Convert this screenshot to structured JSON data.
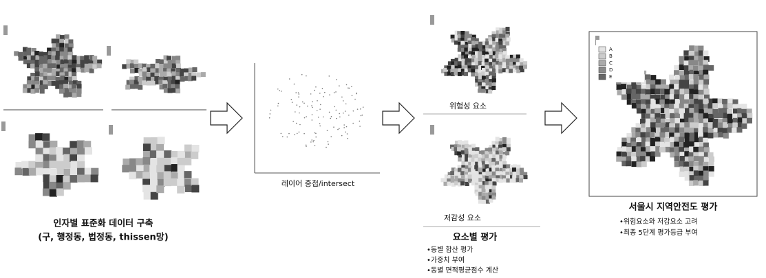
{
  "stage1": {
    "title": "인자별 표준화 데이터 구축",
    "subtitle": "(구, 행정동, 법정동, thissen망)"
  },
  "stage2": {
    "label": "레이어 중첩/intersect"
  },
  "stage3": {
    "risk_label": "위험성 요소",
    "mitigation_label": "저감성 요소",
    "title": "요소별 평가",
    "bullets": [
      "•동별 합산 평가",
      "•가중치 부여",
      "•동별 면적평균점수 계산"
    ]
  },
  "stage4": {
    "title": "서울시 지역안전도 평가",
    "legend": [
      "A",
      "B",
      "C",
      "D",
      "E"
    ],
    "bullets": [
      "•위험요소와 저감요소 고려",
      "•최종 5단계 평가등급 부여"
    ]
  }
}
